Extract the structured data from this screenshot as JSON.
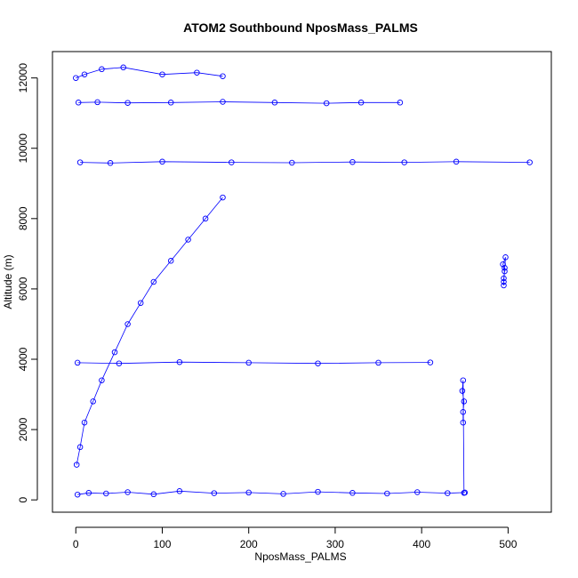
{
  "chart_data": {
    "type": "scatter",
    "title": "ATOM2 Southbound NposMass_PALMS",
    "xlabel": "NposMass_PALMS",
    "ylabel": "Altitude (m)",
    "xlim": [
      -27,
      550
    ],
    "ylim": [
      -350,
      12750
    ],
    "x_ticks": [
      0,
      100,
      200,
      300,
      400,
      500
    ],
    "y_ticks": [
      0,
      2000,
      4000,
      6000,
      8000,
      10000,
      12000
    ],
    "x_tick_labels": [
      "0",
      "100",
      "200",
      "300",
      "400",
      "500"
    ],
    "y_tick_labels": [
      "0",
      "2000",
      "4000",
      "6000",
      "8000",
      "10000",
      "12000"
    ],
    "series_color": "#0000ff",
    "marker": "open-circle",
    "connected": true,
    "grid": false,
    "legend": "none",
    "series": [
      {
        "values_x": [
          2,
          15,
          35,
          60,
          90,
          120,
          160,
          200,
          240,
          280,
          320,
          360,
          395,
          430,
          450
        ],
        "values_y": [
          150,
          200,
          180,
          220,
          160,
          250,
          190,
          210,
          170,
          230,
          200,
          180,
          220,
          190,
          210
        ]
      },
      {
        "values_x": [
          1,
          5,
          10,
          20,
          30,
          45,
          60,
          75,
          90,
          110,
          130,
          150,
          170
        ],
        "values_y": [
          1000,
          1500,
          2200,
          2800,
          3400,
          4200,
          5000,
          5600,
          6200,
          6800,
          7400,
          8000,
          8600
        ]
      },
      {
        "values_x": [
          495,
          495,
          496,
          494,
          497,
          495,
          496
        ],
        "values_y": [
          6100,
          6300,
          6500,
          6700,
          6900,
          6200,
          6600
        ]
      },
      {
        "values_x": [
          5,
          40,
          100,
          180,
          250,
          320,
          380,
          440,
          525
        ],
        "values_y": [
          9600,
          9580,
          9620,
          9600,
          9590,
          9610,
          9600,
          9620,
          9600
        ]
      },
      {
        "values_x": [
          3,
          25,
          60,
          110,
          170,
          230,
          290,
          330,
          375
        ],
        "values_y": [
          11300,
          11310,
          11290,
          11300,
          11320,
          11300,
          11280,
          11300,
          11300
        ]
      },
      {
        "values_x": [
          0,
          10,
          30,
          55,
          100,
          140,
          170
        ],
        "values_y": [
          12000,
          12100,
          12250,
          12300,
          12100,
          12150,
          12050
        ]
      },
      {
        "values_x": [
          448,
          448,
          449,
          447,
          448,
          449
        ],
        "values_y": [
          2200,
          2500,
          2800,
          3100,
          3400,
          200
        ]
      },
      {
        "values_x": [
          2,
          50,
          120,
          200,
          280,
          350,
          410
        ],
        "values_y": [
          3900,
          3880,
          3920,
          3900,
          3880,
          3900,
          3910
        ]
      }
    ]
  }
}
